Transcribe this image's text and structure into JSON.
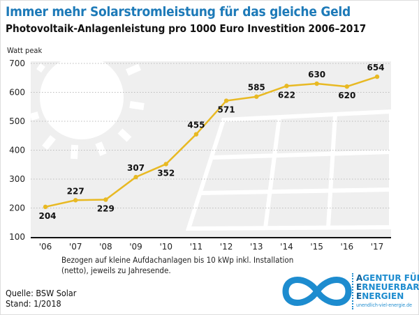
{
  "header": {
    "title": "Immer mehr Solarstromleistung für das gleiche Geld",
    "subtitle": "Photovoltaik-Anlagenleistung pro 1000 Euro Investition 2006–2017"
  },
  "chart_data": {
    "type": "line",
    "title": "Immer mehr Solarstromleistung für das gleiche Geld",
    "subtitle": "Photovoltaik-Anlagenleistung pro 1000 Euro Investition 2006–2017",
    "ylabel": "Watt peak",
    "xlabel": "",
    "categories": [
      "'06",
      "'07",
      "'08",
      "'09",
      "'10",
      "'11",
      "'12",
      "'13",
      "'14",
      "'15",
      "'16",
      "'17"
    ],
    "values": [
      204,
      227,
      229,
      307,
      352,
      455,
      571,
      585,
      622,
      630,
      620,
      654
    ],
    "ylim": [
      100,
      700
    ],
    "yticks": [
      100,
      200,
      300,
      400,
      500,
      600,
      700
    ],
    "grid": true,
    "line_color": "#e8b923",
    "background_color": "#efefef"
  },
  "footer": {
    "note": "Bezogen auf kleine Aufdachanlagen bis 10 kWp inkl. Installation (netto), jeweils zu Jahresende.",
    "source": "Quelle: BSW Solar",
    "date": "Stand: 1/2018"
  },
  "logo": {
    "line1_initial": "A",
    "line1_rest": "GENTUR FÜR",
    "line2_initial": "E",
    "line2_rest": "RNEUERBARE",
    "line3_initial": "E",
    "line3_rest": "NERGIEN",
    "url": "unendlich-viel-energie.de",
    "color": "#1d8ccf"
  }
}
